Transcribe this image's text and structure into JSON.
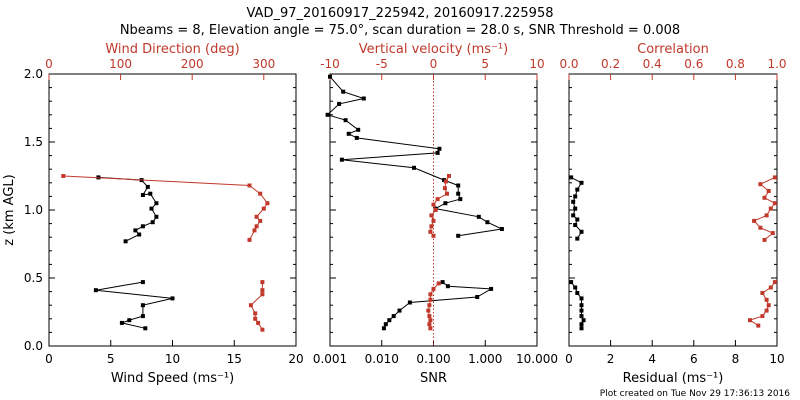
{
  "figure": {
    "title_line1": "VAD_97_20160917_225942, 20160917.225958",
    "title_line2": "Nbeams = 8, Elevation angle = 75.0°, scan duration = 28.0 s, SNR Threshold = 0.008",
    "footer": "Plot created on Tue Nov 29 17:36:13 2016",
    "ylabel": "z (km AGL)",
    "yticks": [
      "0.0",
      "0.5",
      "1.0",
      "1.5",
      "2.0"
    ],
    "colors": {
      "black": "#000000",
      "red": "#c0392b"
    }
  },
  "chart_data": [
    {
      "type": "line",
      "panel": "wind",
      "ylabel": "z (km AGL)",
      "ylim": [
        0,
        2
      ],
      "bottom_axis": {
        "label": "Wind Speed (ms⁻¹)",
        "range": [
          0,
          20
        ],
        "ticks": [
          "0",
          "5",
          "10",
          "15",
          "20"
        ]
      },
      "top_axis": {
        "label": "Wind Direction (deg)",
        "range": [
          0,
          345
        ],
        "ticks": [
          "0",
          "100",
          "200",
          "300"
        ]
      },
      "series": [
        {
          "axis": "bottom",
          "color": "#000000",
          "x": [
            4.0,
            7.5,
            8.0,
            7.6,
            8.2,
            8.7,
            8.3,
            8.7,
            8.4,
            7.6,
            7.0,
            7.3,
            6.2
          ],
          "y": [
            1.24,
            1.22,
            1.17,
            1.11,
            1.12,
            1.05,
            1.01,
            0.95,
            0.91,
            0.88,
            0.85,
            0.82,
            0.77
          ]
        },
        {
          "axis": "bottom",
          "color": "#000000",
          "x": [
            7.6,
            3.8,
            10.0,
            7.6,
            7.6,
            6.5,
            5.9,
            7.8
          ],
          "y": [
            0.47,
            0.41,
            0.35,
            0.3,
            0.22,
            0.19,
            0.17,
            0.13
          ]
        },
        {
          "axis": "top",
          "color": "#c0392b",
          "x": [
            20,
            280,
            295,
            305,
            300,
            290,
            295,
            290,
            287,
            280
          ],
          "y": [
            1.25,
            1.18,
            1.12,
            1.05,
            1.01,
            0.95,
            0.92,
            0.88,
            0.85,
            0.78
          ]
        },
        {
          "axis": "top",
          "color": "#c0392b",
          "x": [
            298,
            298,
            298,
            282,
            288,
            288,
            292,
            298
          ],
          "y": [
            0.47,
            0.41,
            0.38,
            0.3,
            0.24,
            0.2,
            0.17,
            0.12
          ]
        }
      ]
    },
    {
      "type": "line",
      "panel": "snr",
      "ylim": [
        0,
        2
      ],
      "bottom_axis": {
        "label": "SNR",
        "scale": "log",
        "range": [
          0.001,
          10
        ],
        "ticks": [
          "0.001",
          "0.010",
          "0.100",
          "1.000",
          "10.000"
        ]
      },
      "top_axis": {
        "label": "Vertical velocity (ms⁻¹)",
        "range": [
          -10,
          10
        ],
        "ticks": [
          "-10",
          "-5",
          "0",
          "5",
          "10"
        ],
        "zero_line_color": "#c0392b"
      },
      "series": [
        {
          "axis": "bottom",
          "color": "#000000",
          "x": [
            0.001,
            0.0018,
            0.0045,
            0.0015,
            0.0009,
            0.002,
            0.0035,
            0.0023,
            0.0033,
            0.13,
            0.12,
            0.0017,
            0.042,
            0.16,
            0.3,
            0.3,
            0.33,
            0.17,
            0.11,
            0.75,
            1.1,
            2.1,
            0.3
          ],
          "y": [
            1.98,
            1.87,
            1.82,
            1.78,
            1.7,
            1.66,
            1.59,
            1.56,
            1.53,
            1.45,
            1.42,
            1.37,
            1.31,
            1.22,
            1.18,
            1.12,
            1.08,
            1.05,
            1.01,
            0.95,
            0.91,
            0.86,
            0.81
          ]
        },
        {
          "axis": "bottom",
          "color": "#000000",
          "x": [
            0.15,
            0.19,
            1.3,
            0.7,
            0.035,
            0.022,
            0.017,
            0.014,
            0.012,
            0.011
          ],
          "y": [
            0.47,
            0.44,
            0.42,
            0.36,
            0.32,
            0.26,
            0.22,
            0.19,
            0.16,
            0.13
          ]
        },
        {
          "axis": "top",
          "color": "#c0392b",
          "x": [
            1.5,
            1.2,
            1.1,
            1.3,
            0.4,
            0.0,
            0.2,
            -0.2,
            0.0,
            -0.2,
            -0.3,
            0.0
          ],
          "y": [
            1.25,
            1.21,
            1.16,
            1.12,
            1.08,
            1.04,
            1.0,
            0.96,
            0.92,
            0.88,
            0.84,
            0.81
          ]
        },
        {
          "axis": "top",
          "color": "#c0392b",
          "x": [
            0.5,
            0.0,
            -0.3,
            -0.3,
            -0.4,
            -0.5,
            -0.4,
            -0.3,
            -0.4,
            -0.3
          ],
          "y": [
            0.46,
            0.42,
            0.38,
            0.34,
            0.3,
            0.26,
            0.22,
            0.19,
            0.16,
            0.13
          ]
        }
      ]
    },
    {
      "type": "line",
      "panel": "residual",
      "ylim": [
        0,
        2
      ],
      "bottom_axis": {
        "label": "Residual (ms⁻¹)",
        "range": [
          0,
          10
        ],
        "ticks": [
          "0",
          "2",
          "4",
          "6",
          "8",
          "10"
        ]
      },
      "top_axis": {
        "label": "Correlation",
        "range": [
          0,
          1
        ],
        "ticks": [
          "0.0",
          "0.2",
          "0.4",
          "0.6",
          "0.8",
          "1.0"
        ]
      },
      "series": [
        {
          "axis": "bottom",
          "color": "#000000",
          "x": [
            0.1,
            0.6,
            0.4,
            0.3,
            0.2,
            0.3,
            0.2,
            0.4,
            0.3,
            0.6,
            0.4
          ],
          "y": [
            1.24,
            1.2,
            1.15,
            1.1,
            1.06,
            1.01,
            0.96,
            0.93,
            0.89,
            0.84,
            0.79
          ]
        },
        {
          "axis": "bottom",
          "color": "#000000",
          "x": [
            0.1,
            0.3,
            0.4,
            0.6,
            0.6,
            0.6,
            0.6,
            0.7,
            0.6,
            0.6
          ],
          "y": [
            0.47,
            0.43,
            0.39,
            0.35,
            0.3,
            0.26,
            0.22,
            0.19,
            0.16,
            0.13
          ]
        },
        {
          "axis": "top",
          "color": "#c0392b",
          "x": [
            0.99,
            0.92,
            0.96,
            0.94,
            0.99,
            0.97,
            0.95,
            0.89,
            0.92,
            0.98,
            0.94
          ],
          "y": [
            1.24,
            1.19,
            1.14,
            1.09,
            1.05,
            1.01,
            0.96,
            0.92,
            0.87,
            0.83,
            0.78
          ]
        },
        {
          "axis": "top",
          "color": "#c0392b",
          "x": [
            0.99,
            0.97,
            0.93,
            0.95,
            0.96,
            0.95,
            0.93,
            0.87,
            0.91
          ],
          "y": [
            0.47,
            0.43,
            0.39,
            0.34,
            0.3,
            0.26,
            0.22,
            0.19,
            0.15
          ]
        }
      ]
    }
  ]
}
